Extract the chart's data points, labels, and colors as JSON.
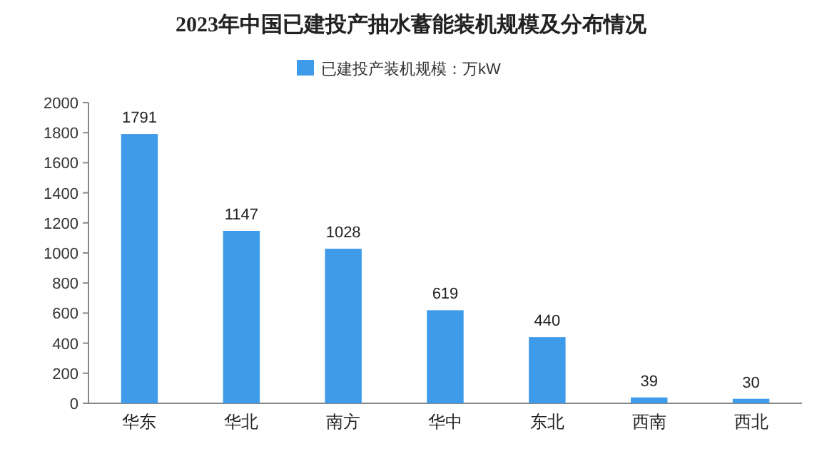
{
  "chart_data": {
    "type": "bar",
    "title": "2023年中国已建投产抽水蓄能装机规模及分布情况",
    "categories": [
      "华东",
      "华北",
      "南方",
      "华中",
      "东北",
      "西南",
      "西北"
    ],
    "series": [
      {
        "name": "已建投产装机规模：万kW",
        "color": "#3d9be9",
        "values": [
          1791,
          1147,
          1028,
          619,
          440,
          39,
          30
        ]
      }
    ],
    "ylim": [
      0,
      2000
    ],
    "yticks": [
      0,
      200,
      400,
      600,
      800,
      1000,
      1200,
      1400,
      1600,
      1800,
      2000
    ],
    "data_labels": true,
    "legend": "top",
    "grid": false
  }
}
